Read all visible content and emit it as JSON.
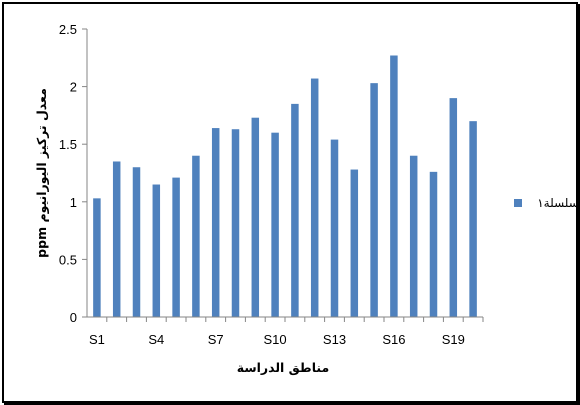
{
  "chart_data": {
    "type": "bar",
    "categories": [
      "S1",
      "S2",
      "S3",
      "S4",
      "S5",
      "S6",
      "S7",
      "S8",
      "S9",
      "S10",
      "S11",
      "S12",
      "S13",
      "S14",
      "S15",
      "S16",
      "S17",
      "S18",
      "S19",
      "S20"
    ],
    "x_tick_labels": [
      "S1",
      "S4",
      "S7",
      "S10",
      "S13",
      "S16",
      "S19"
    ],
    "series": [
      {
        "name": "سلسلة١",
        "color": "#4F81BD",
        "values": [
          1.03,
          1.35,
          1.3,
          1.15,
          1.21,
          1.4,
          1.64,
          1.63,
          1.73,
          1.6,
          1.85,
          2.07,
          1.54,
          1.28,
          2.03,
          2.27,
          1.4,
          1.26,
          1.9,
          1.7
        ]
      }
    ],
    "xlabel": "مناطق الدراسة",
    "ylabel": "معدل تركيز اليورانيوم ppm",
    "ylim": [
      0,
      2.5
    ],
    "y_ticks": [
      "0",
      "0.5",
      "1",
      "1.5",
      "2",
      "2.5"
    ],
    "grid": false,
    "legend_position": "right"
  }
}
